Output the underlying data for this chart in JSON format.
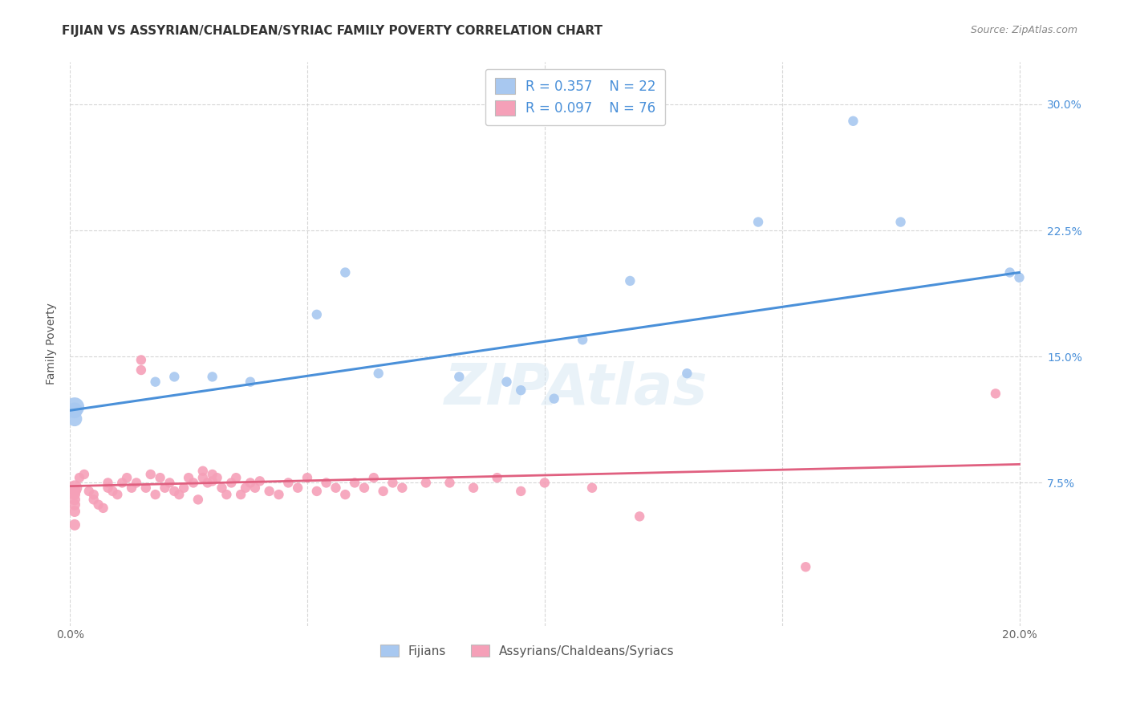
{
  "title": "FIJIAN VS ASSYRIAN/CHALDEAN/SYRIAC FAMILY POVERTY CORRELATION CHART",
  "source": "Source: ZipAtlas.com",
  "ylabel": "Family Poverty",
  "watermark": "ZIPAtlas",
  "xlim": [
    0.0,
    0.205
  ],
  "ylim": [
    -0.01,
    0.325
  ],
  "xtick_labels": [
    "0.0%",
    "",
    "",
    "",
    "20.0%"
  ],
  "ytick_labels": [
    "7.5%",
    "15.0%",
    "22.5%",
    "30.0%"
  ],
  "yticks": [
    0.075,
    0.15,
    0.225,
    0.3
  ],
  "fijian_R": "0.357",
  "fijian_N": "22",
  "assyrian_R": "0.097",
  "assyrian_N": "76",
  "fijian_color": "#a8c8f0",
  "fijian_line_color": "#4a90d9",
  "assyrian_color": "#f5a0b8",
  "assyrian_line_color": "#e06080",
  "legend_label_fijian": "Fijians",
  "legend_label_assyrian": "Assyrians/Chaldeans/Syriacs",
  "fijian_x": [
    0.001,
    0.001,
    0.001,
    0.018,
    0.022,
    0.03,
    0.038,
    0.052,
    0.058,
    0.065,
    0.082,
    0.092,
    0.095,
    0.102,
    0.108,
    0.118,
    0.13,
    0.145,
    0.165,
    0.175,
    0.198,
    0.2
  ],
  "fijian_y": [
    0.12,
    0.118,
    0.113,
    0.135,
    0.138,
    0.138,
    0.135,
    0.175,
    0.2,
    0.14,
    0.138,
    0.135,
    0.13,
    0.125,
    0.16,
    0.195,
    0.14,
    0.23,
    0.29,
    0.23,
    0.2,
    0.197
  ],
  "fijian_sizes": [
    300,
    200,
    180,
    80,
    80,
    80,
    80,
    80,
    80,
    80,
    80,
    80,
    80,
    80,
    80,
    80,
    80,
    80,
    80,
    80,
    80,
    80
  ],
  "assyrian_x": [
    0.001,
    0.001,
    0.001,
    0.001,
    0.001,
    0.001,
    0.001,
    0.002,
    0.003,
    0.004,
    0.005,
    0.005,
    0.006,
    0.007,
    0.008,
    0.008,
    0.009,
    0.01,
    0.011,
    0.012,
    0.013,
    0.014,
    0.015,
    0.015,
    0.016,
    0.017,
    0.018,
    0.019,
    0.02,
    0.021,
    0.022,
    0.023,
    0.024,
    0.025,
    0.026,
    0.027,
    0.028,
    0.028,
    0.029,
    0.03,
    0.03,
    0.031,
    0.032,
    0.033,
    0.034,
    0.035,
    0.036,
    0.037,
    0.038,
    0.039,
    0.04,
    0.042,
    0.044,
    0.046,
    0.048,
    0.05,
    0.052,
    0.054,
    0.056,
    0.058,
    0.06,
    0.062,
    0.064,
    0.066,
    0.068,
    0.07,
    0.075,
    0.08,
    0.085,
    0.09,
    0.095,
    0.1,
    0.11,
    0.12,
    0.155,
    0.195
  ],
  "assyrian_y": [
    0.072,
    0.07,
    0.068,
    0.065,
    0.062,
    0.058,
    0.05,
    0.078,
    0.08,
    0.07,
    0.068,
    0.065,
    0.062,
    0.06,
    0.075,
    0.072,
    0.07,
    0.068,
    0.075,
    0.078,
    0.072,
    0.075,
    0.148,
    0.142,
    0.072,
    0.08,
    0.068,
    0.078,
    0.072,
    0.075,
    0.07,
    0.068,
    0.072,
    0.078,
    0.075,
    0.065,
    0.082,
    0.078,
    0.075,
    0.08,
    0.076,
    0.078,
    0.072,
    0.068,
    0.075,
    0.078,
    0.068,
    0.072,
    0.075,
    0.072,
    0.076,
    0.07,
    0.068,
    0.075,
    0.072,
    0.078,
    0.07,
    0.075,
    0.072,
    0.068,
    0.075,
    0.072,
    0.078,
    0.07,
    0.075,
    0.072,
    0.075,
    0.075,
    0.072,
    0.078,
    0.07,
    0.075,
    0.072,
    0.055,
    0.025,
    0.128
  ],
  "assyrian_sizes": [
    180,
    120,
    100,
    100,
    100,
    100,
    100,
    80,
    80,
    80,
    80,
    80,
    80,
    80,
    80,
    80,
    80,
    80,
    80,
    80,
    80,
    80,
    80,
    80,
    80,
    80,
    80,
    80,
    80,
    80,
    80,
    80,
    80,
    80,
    80,
    80,
    80,
    80,
    80,
    80,
    80,
    80,
    80,
    80,
    80,
    80,
    80,
    80,
    80,
    80,
    80,
    80,
    80,
    80,
    80,
    80,
    80,
    80,
    80,
    80,
    80,
    80,
    80,
    80,
    80,
    80,
    80,
    80,
    80,
    80,
    80,
    80,
    80,
    80,
    80,
    80
  ],
  "background_color": "#ffffff",
  "grid_color": "#cccccc",
  "title_fontsize": 11,
  "axis_fontsize": 10,
  "tick_fontsize": 10
}
